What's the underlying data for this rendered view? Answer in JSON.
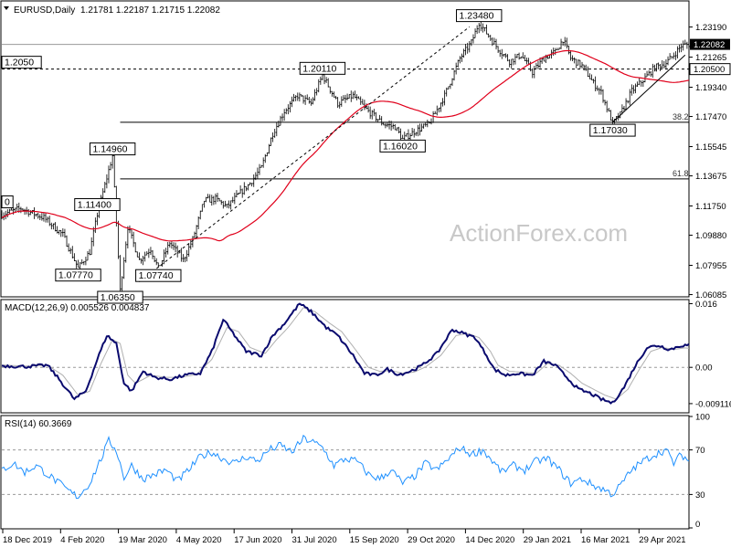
{
  "header": {
    "symbol": "EURUSD,Daily",
    "ohlc": "1.21781 1.22187 1.21715 1.22082"
  },
  "watermark": "ActionForex.com",
  "chart_data": [
    {
      "type": "candlestick",
      "panel": "price",
      "title": "EURUSD,Daily",
      "ylim": [
        1.06,
        1.248
      ],
      "y_ticks": [
        "1.23190",
        "1.21265",
        "1.19340",
        "1.17470",
        "1.15545",
        "1.13675",
        "1.11750",
        "1.09880",
        "1.07955",
        "1.06085"
      ],
      "current_price_label": "1.22082",
      "x_ticks": [
        "18 Dec 2019",
        "4 Feb 2020",
        "19 Mar 2020",
        "4 May 2020",
        "17 Jun 2020",
        "31 Jul 2020",
        "15 Sep 2020",
        "29 Oct 2020",
        "14 Dec 2020",
        "29 Jan 2021",
        "16 Mar 2021",
        "29 Apr 2021"
      ],
      "annotations": [
        {
          "text": "1.23480",
          "date_index": 250,
          "price": 1.2348
        },
        {
          "text": "1.20110",
          "date_index": 168,
          "price": 1.2011
        },
        {
          "text": "1.16020",
          "date_index": 210,
          "price": 1.1602
        },
        {
          "text": "1.17030",
          "date_index": 320,
          "price": 1.1703
        },
        {
          "text": "1.14960",
          "date_index": 58,
          "price": 1.1496
        },
        {
          "text": "1.11400",
          "date_index": 50,
          "price": 1.114
        },
        {
          "text": "1.07770",
          "date_index": 40,
          "price": 1.0777
        },
        {
          "text": "1.07740",
          "date_index": 82,
          "price": 1.0774
        },
        {
          "text": "1.06350",
          "date_index": 62,
          "price": 1.0635
        },
        {
          "text": "1.2050",
          "date_index": 0,
          "price": 1.205
        },
        {
          "text": "0",
          "date_index": 0,
          "price": 1.1245
        }
      ],
      "horizontal_lines": [
        {
          "price": 1.205,
          "style": "dashed",
          "label": "1.20500"
        },
        {
          "price": 1.2208,
          "style": "solid",
          "label": ""
        },
        {
          "price": 1.171,
          "style": "solid",
          "label": "38.2",
          "from_index": 62
        },
        {
          "price": 1.1348,
          "style": "solid",
          "label": "61.8",
          "from_index": 62
        }
      ],
      "trendlines": [
        {
          "from": [
            72,
            1.069
          ],
          "to": [
            245,
            1.232
          ],
          "style": "dashed"
        },
        {
          "from": [
            320,
            1.171
          ],
          "to": [
            358,
            1.214
          ],
          "style": "solid"
        }
      ],
      "moving_average": {
        "name": "SMA 55",
        "color": "#e0001b"
      },
      "key_points": [
        [
          0,
          1.112
        ],
        [
          10,
          1.116
        ],
        [
          22,
          1.11
        ],
        [
          32,
          1.099
        ],
        [
          40,
          1.0777
        ],
        [
          46,
          1.088
        ],
        [
          50,
          1.112
        ],
        [
          58,
          1.1496
        ],
        [
          62,
          1.0635
        ],
        [
          66,
          1.104
        ],
        [
          72,
          1.083
        ],
        [
          78,
          1.09
        ],
        [
          82,
          1.0774
        ],
        [
          88,
          1.094
        ],
        [
          95,
          1.083
        ],
        [
          100,
          1.096
        ],
        [
          106,
          1.121
        ],
        [
          112,
          1.122
        ],
        [
          118,
          1.117
        ],
        [
          125,
          1.126
        ],
        [
          130,
          1.132
        ],
        [
          136,
          1.142
        ],
        [
          142,
          1.164
        ],
        [
          148,
          1.178
        ],
        [
          155,
          1.188
        ],
        [
          162,
          1.183
        ],
        [
          168,
          1.2011
        ],
        [
          176,
          1.183
        ],
        [
          184,
          1.188
        ],
        [
          192,
          1.178
        ],
        [
          200,
          1.17
        ],
        [
          206,
          1.168
        ],
        [
          210,
          1.1602
        ],
        [
          216,
          1.165
        ],
        [
          224,
          1.17
        ],
        [
          232,
          1.188
        ],
        [
          240,
          1.212
        ],
        [
          246,
          1.222
        ],
        [
          250,
          1.2348
        ],
        [
          254,
          1.228
        ],
        [
          260,
          1.218
        ],
        [
          266,
          1.21
        ],
        [
          272,
          1.214
        ],
        [
          278,
          1.203
        ],
        [
          284,
          1.212
        ],
        [
          290,
          1.216
        ],
        [
          294,
          1.224
        ],
        [
          298,
          1.212
        ],
        [
          304,
          1.207
        ],
        [
          310,
          1.196
        ],
        [
          314,
          1.19
        ],
        [
          320,
          1.1703
        ],
        [
          324,
          1.176
        ],
        [
          330,
          1.191
        ],
        [
          336,
          1.198
        ],
        [
          342,
          1.206
        ],
        [
          348,
          1.209
        ],
        [
          352,
          1.214
        ],
        [
          356,
          1.22
        ],
        [
          360,
          1.2208
        ]
      ]
    },
    {
      "type": "line",
      "panel": "macd",
      "title": "MACD(12,26,9) 0.005526 0.004837",
      "ylim": [
        -0.0112,
        0.0168
      ],
      "y_ticks": [
        "0.016",
        "0.00",
        "-0.009116"
      ],
      "series": [
        {
          "name": "MACD",
          "color": "#0a0a6e",
          "points": [
            [
              0,
              0.0004
            ],
            [
              12,
              0.0002
            ],
            [
              24,
              0.0005
            ],
            [
              30,
              -0.003
            ],
            [
              38,
              -0.008
            ],
            [
              44,
              -0.006
            ],
            [
              50,
              0.002
            ],
            [
              55,
              0.008
            ],
            [
              60,
              0.006
            ],
            [
              64,
              -0.004
            ],
            [
              68,
              -0.006
            ],
            [
              74,
              -0.001
            ],
            [
              80,
              -0.0025
            ],
            [
              88,
              -0.003
            ],
            [
              96,
              -0.002
            ],
            [
              104,
              -0.0015
            ],
            [
              110,
              0.004
            ],
            [
              116,
              0.012
            ],
            [
              122,
              0.008
            ],
            [
              128,
              0.004
            ],
            [
              136,
              0.003
            ],
            [
              142,
              0.008
            ],
            [
              148,
              0.011
            ],
            [
              156,
              0.016
            ],
            [
              162,
              0.014
            ],
            [
              170,
              0.01
            ],
            [
              176,
              0.008
            ],
            [
              184,
              0.003
            ],
            [
              190,
              -0.0015
            ],
            [
              196,
              -0.002
            ],
            [
              202,
              -0.0005
            ],
            [
              208,
              -0.0018
            ],
            [
              214,
              -0.001
            ],
            [
              220,
              0.0004
            ],
            [
              228,
              0.0035
            ],
            [
              236,
              0.0095
            ],
            [
              242,
              0.0085
            ],
            [
              248,
              0.0075
            ],
            [
              254,
              0.003
            ],
            [
              258,
              -0.0005
            ],
            [
              264,
              -0.002
            ],
            [
              270,
              -0.0015
            ],
            [
              278,
              -0.002
            ],
            [
              284,
              0.0015
            ],
            [
              290,
              0.0005
            ],
            [
              296,
              -0.0025
            ],
            [
              302,
              -0.0055
            ],
            [
              308,
              -0.0065
            ],
            [
              314,
              -0.008
            ],
            [
              320,
              -0.009
            ],
            [
              326,
              -0.005
            ],
            [
              332,
              0.0005
            ],
            [
              338,
              0.005
            ],
            [
              344,
              0.0055
            ],
            [
              350,
              0.0045
            ],
            [
              356,
              0.0055
            ],
            [
              360,
              0.0055
            ]
          ]
        },
        {
          "name": "Signal",
          "color": "#b0b0b0",
          "points": [
            [
              0,
              0.0006
            ],
            [
              12,
              0.0003
            ],
            [
              24,
              0.0005
            ],
            [
              32,
              -0.002
            ],
            [
              40,
              -0.007
            ],
            [
              46,
              -0.006
            ],
            [
              52,
              0.001
            ],
            [
              58,
              0.007
            ],
            [
              62,
              0.006
            ],
            [
              66,
              -0.002
            ],
            [
              70,
              -0.004
            ],
            [
              78,
              -0.002
            ],
            [
              86,
              -0.0025
            ],
            [
              94,
              -0.0025
            ],
            [
              102,
              -0.0018
            ],
            [
              110,
              0.002
            ],
            [
              118,
              0.01
            ],
            [
              124,
              0.009
            ],
            [
              130,
              0.005
            ],
            [
              138,
              0.0035
            ],
            [
              144,
              0.007
            ],
            [
              150,
              0.01
            ],
            [
              158,
              0.015
            ],
            [
              164,
              0.014
            ],
            [
              172,
              0.011
            ],
            [
              178,
              0.009
            ],
            [
              186,
              0.004
            ],
            [
              192,
              0.0
            ],
            [
              198,
              -0.001
            ],
            [
              204,
              -0.0008
            ],
            [
              210,
              -0.0015
            ],
            [
              216,
              -0.0012
            ],
            [
              222,
              0.0001
            ],
            [
              230,
              0.003
            ],
            [
              238,
              0.008
            ],
            [
              244,
              0.0085
            ],
            [
              250,
              0.0075
            ],
            [
              256,
              0.004
            ],
            [
              260,
              0.0005
            ],
            [
              266,
              -0.001
            ],
            [
              272,
              -0.0012
            ],
            [
              280,
              -0.0015
            ],
            [
              286,
              0.001
            ],
            [
              292,
              0.0005
            ],
            [
              298,
              -0.0015
            ],
            [
              304,
              -0.004
            ],
            [
              310,
              -0.0055
            ],
            [
              316,
              -0.007
            ],
            [
              322,
              -0.008
            ],
            [
              328,
              -0.0055
            ],
            [
              334,
              -0.0005
            ],
            [
              340,
              0.004
            ],
            [
              346,
              0.005
            ],
            [
              352,
              0.0045
            ],
            [
              358,
              0.0049
            ],
            [
              360,
              0.0048
            ]
          ]
        }
      ]
    },
    {
      "type": "line",
      "panel": "rsi",
      "title": "RSI(14) 60.3669",
      "ylim": [
        0,
        100
      ],
      "y_ticks": [
        "100",
        "70",
        "30",
        "0"
      ],
      "series": [
        {
          "name": "RSI",
          "color": "#1e90ff",
          "points": [
            [
              0,
              52
            ],
            [
              6,
              58
            ],
            [
              12,
              50
            ],
            [
              18,
              56
            ],
            [
              24,
              48
            ],
            [
              30,
              40
            ],
            [
              36,
              32
            ],
            [
              40,
              28
            ],
            [
              46,
              40
            ],
            [
              52,
              62
            ],
            [
              56,
              78
            ],
            [
              60,
              70
            ],
            [
              64,
              45
            ],
            [
              68,
              56
            ],
            [
              74,
              44
            ],
            [
              80,
              48
            ],
            [
              86,
              52
            ],
            [
              92,
              42
            ],
            [
              98,
              52
            ],
            [
              104,
              64
            ],
            [
              110,
              68
            ],
            [
              116,
              62
            ],
            [
              122,
              58
            ],
            [
              128,
              64
            ],
            [
              134,
              60
            ],
            [
              140,
              70
            ],
            [
              146,
              74
            ],
            [
              152,
              68
            ],
            [
              158,
              80
            ],
            [
              162,
              78
            ],
            [
              168,
              72
            ],
            [
              174,
              56
            ],
            [
              180,
              62
            ],
            [
              186,
              60
            ],
            [
              192,
              48
            ],
            [
              198,
              44
            ],
            [
              204,
              52
            ],
            [
              210,
              40
            ],
            [
              216,
              46
            ],
            [
              222,
              58
            ],
            [
              228,
              52
            ],
            [
              234,
              62
            ],
            [
              240,
              72
            ],
            [
              246,
              66
            ],
            [
              252,
              70
            ],
            [
              256,
              62
            ],
            [
              262,
              50
            ],
            [
              268,
              56
            ],
            [
              274,
              52
            ],
            [
              280,
              60
            ],
            [
              286,
              62
            ],
            [
              292,
              52
            ],
            [
              298,
              40
            ],
            [
              304,
              44
            ],
            [
              310,
              38
            ],
            [
              316,
              34
            ],
            [
              320,
              30
            ],
            [
              324,
              38
            ],
            [
              330,
              52
            ],
            [
              336,
              60
            ],
            [
              342,
              66
            ],
            [
              348,
              70
            ],
            [
              352,
              58
            ],
            [
              356,
              66
            ],
            [
              360,
              60
            ]
          ]
        }
      ]
    }
  ]
}
